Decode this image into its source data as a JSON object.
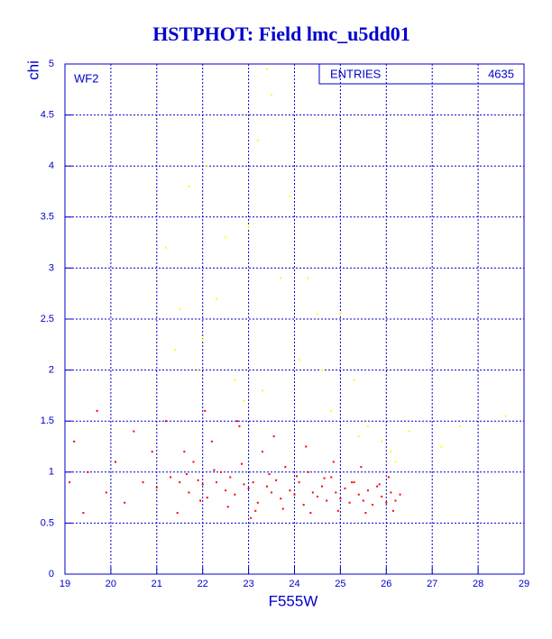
{
  "chart_data": {
    "type": "scatter",
    "title": "HSTPHOT: Field lmc_u5dd01",
    "x_label": "F555W",
    "y_label": "chi",
    "panel_label": "WF2",
    "stats_label": "ENTRIES",
    "entries": 4635,
    "xlim": [
      19,
      29
    ],
    "ylim": [
      0,
      5
    ],
    "xticks": [
      19,
      20,
      21,
      22,
      23,
      24,
      25,
      26,
      27,
      28,
      29
    ],
    "yticks": [
      0,
      0.5,
      1,
      1.5,
      2,
      2.5,
      3,
      3.5,
      4,
      4.5,
      5
    ],
    "grid": true,
    "series": [
      {
        "color": "#ff0000",
        "x": [
          19.1,
          19.2,
          19.4,
          19.5,
          19.7,
          19.9,
          20.1,
          20.3,
          20.5,
          20.7,
          20.9,
          21.0,
          21.2,
          21.3,
          21.5,
          21.6,
          21.7,
          21.8,
          21.9,
          22.0,
          22.1,
          22.2,
          22.3,
          22.4,
          22.5,
          22.6,
          22.7,
          22.8,
          22.9,
          23.0,
          23.1,
          23.2,
          23.3,
          23.4,
          23.5,
          23.6,
          23.7,
          23.8,
          23.9,
          24.0,
          24.1,
          24.2,
          24.3,
          24.4,
          24.5,
          24.6,
          24.7,
          24.8,
          24.9,
          25.0,
          25.1,
          25.2,
          25.3,
          25.4,
          25.5,
          25.6,
          25.7,
          25.8,
          25.9,
          26.0,
          26.1,
          26.2,
          26.3,
          21.65,
          21.95,
          22.25,
          22.55,
          22.85,
          23.15,
          23.45,
          23.75,
          24.05,
          24.35,
          24.65,
          24.95,
          25.25,
          25.55,
          25.85,
          26.15,
          22.05,
          22.75,
          23.55,
          24.25,
          24.85,
          25.45,
          26.05,
          23.05,
          21.45
        ],
        "values": [
          0.9,
          1.3,
          0.6,
          1.0,
          1.6,
          0.8,
          1.1,
          0.7,
          1.4,
          0.9,
          1.2,
          0.85,
          1.5,
          0.95,
          0.9,
          1.2,
          0.8,
          1.1,
          0.92,
          0.88,
          0.75,
          1.3,
          0.9,
          1.0,
          0.82,
          0.95,
          0.78,
          1.45,
          0.88,
          0.84,
          0.9,
          0.7,
          1.2,
          0.86,
          0.8,
          0.92,
          0.74,
          1.05,
          0.82,
          0.78,
          0.9,
          0.68,
          1.0,
          0.8,
          0.76,
          0.86,
          0.72,
          0.95,
          0.8,
          0.74,
          0.84,
          0.7,
          0.9,
          0.78,
          0.72,
          0.82,
          0.68,
          0.86,
          0.76,
          0.7,
          0.8,
          0.72,
          0.78,
          0.98,
          0.72,
          1.02,
          0.66,
          1.08,
          0.62,
          0.98,
          0.64,
          0.96,
          0.6,
          0.94,
          0.62,
          0.9,
          0.6,
          0.88,
          0.62,
          1.6,
          1.5,
          1.35,
          1.25,
          1.1,
          1.05,
          0.95,
          0.55,
          0.6
        ]
      },
      {
        "color": "#ffff00",
        "x": [
          21.2,
          21.5,
          21.7,
          21.9,
          22.1,
          22.3,
          22.5,
          22.7,
          23.0,
          23.2,
          23.4,
          23.5,
          23.7,
          23.9,
          24.1,
          24.3,
          24.5,
          24.8,
          25.0,
          25.3,
          25.6,
          25.9,
          26.2,
          26.5,
          27.2,
          27.6,
          28.6,
          22.0,
          22.9,
          23.3,
          24.6,
          21.4,
          25.4,
          26.1
        ],
        "values": [
          3.2,
          2.6,
          3.8,
          2.0,
          4.0,
          2.7,
          3.3,
          1.9,
          3.4,
          4.25,
          4.95,
          4.7,
          2.9,
          3.7,
          2.1,
          2.9,
          2.55,
          1.6,
          2.55,
          1.9,
          1.45,
          1.3,
          1.1,
          1.4,
          1.25,
          1.45,
          1.55,
          2.3,
          1.7,
          1.8,
          2.0,
          2.2,
          1.35,
          1.2
        ]
      }
    ]
  }
}
